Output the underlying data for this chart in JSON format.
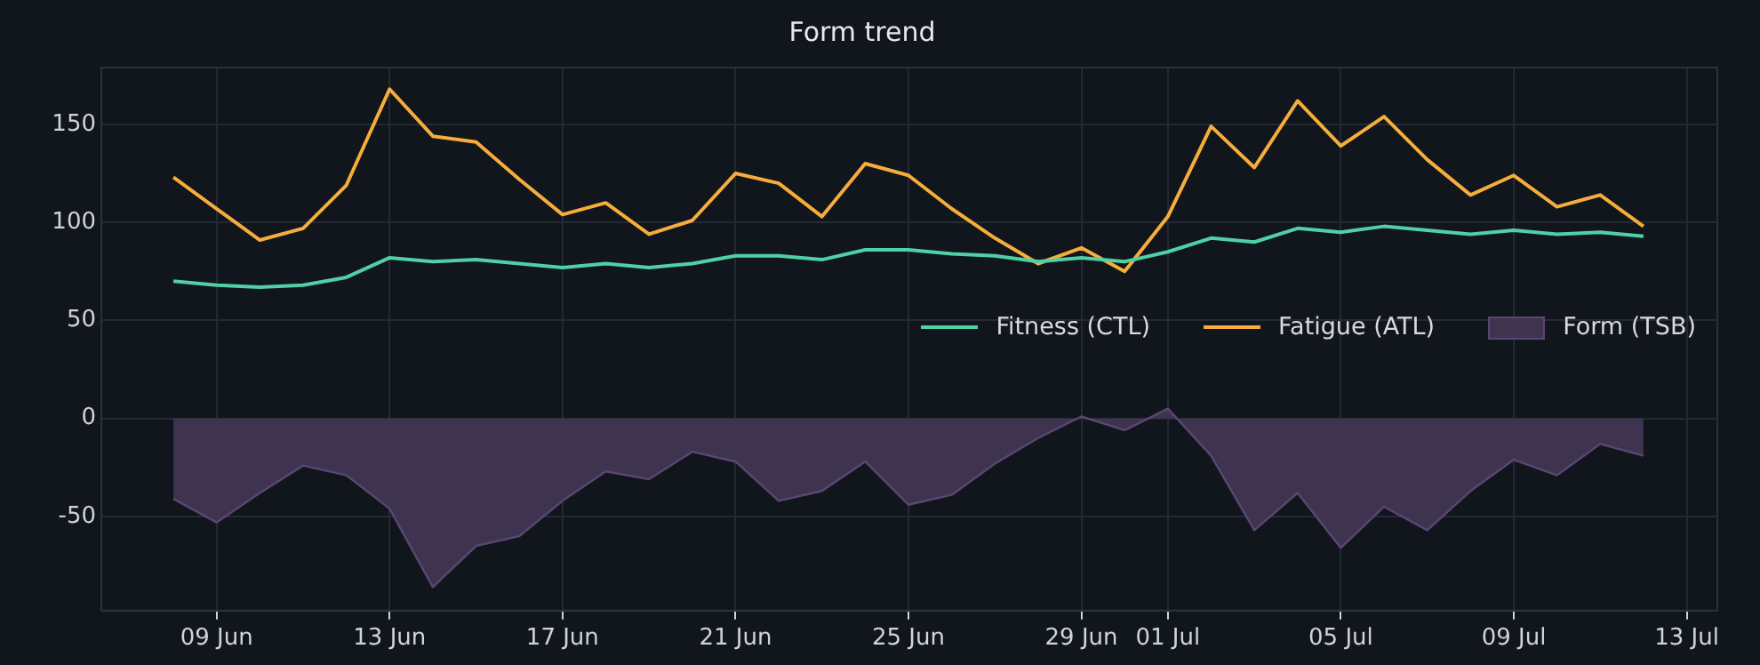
{
  "chart_data": {
    "type": "line",
    "title": "Form trend",
    "x": [
      "--06-08",
      "--06-09",
      "--06-10",
      "--06-11",
      "--06-12",
      "--06-13",
      "--06-14",
      "--06-15",
      "--06-16",
      "--06-17",
      "--06-18",
      "--06-19",
      "--06-20",
      "--06-21",
      "--06-22",
      "--06-23",
      "--06-24",
      "--06-25",
      "--06-26",
      "--06-27",
      "--06-28",
      "--06-29",
      "--06-30",
      "--07-01",
      "--07-02",
      "--07-03",
      "--07-04",
      "--07-05",
      "--07-06",
      "--07-07",
      "--07-08",
      "--07-09",
      "--07-10",
      "--07-11",
      "--07-12"
    ],
    "series": [
      {
        "name": "Fitness (CTL)",
        "type": "line",
        "color": "#4fd1a5",
        "values": [
          70,
          68,
          67,
          68,
          72,
          82,
          80,
          81,
          79,
          77,
          79,
          77,
          79,
          83,
          83,
          81,
          86,
          86,
          84,
          83,
          80,
          82,
          80,
          85,
          92,
          90,
          97,
          95,
          98,
          96,
          94,
          96,
          94,
          95,
          93
        ]
      },
      {
        "name": "Fatigue (ATL)",
        "type": "line",
        "color": "#f6ad3b",
        "values": [
          123,
          107,
          91,
          97,
          119,
          168,
          144,
          141,
          122,
          104,
          110,
          94,
          101,
          125,
          120,
          103,
          130,
          124,
          107,
          92,
          79,
          87,
          75,
          103,
          149,
          128,
          162,
          139,
          154,
          132,
          114,
          124,
          108,
          114,
          98
        ]
      },
      {
        "name": "Form (TSB)",
        "type": "area",
        "color": "#3f3450",
        "values": [
          -41,
          -53,
          -38,
          -24,
          -29,
          -46,
          -86,
          -65,
          -60,
          -42,
          -27,
          -31,
          -17,
          -22,
          -42,
          -37,
          -22,
          -44,
          -39,
          -23,
          -10,
          1,
          -6,
          5,
          -19,
          -57,
          -38,
          -66,
          -45,
          -57,
          -37,
          -21,
          -29,
          -13,
          -19
        ]
      }
    ],
    "xlim": [
      "--06-06T08:00",
      "--07-13T17:00"
    ],
    "xticks": [
      {
        "value": "--06-09",
        "label": "09 Jun"
      },
      {
        "value": "--06-13",
        "label": "13 Jun"
      },
      {
        "value": "--06-17",
        "label": "17 Jun"
      },
      {
        "value": "--06-21",
        "label": "21 Jun"
      },
      {
        "value": "--06-25",
        "label": "25 Jun"
      },
      {
        "value": "--06-29",
        "label": "29 Jun"
      },
      {
        "value": "--07-01",
        "label": "01 Jul"
      },
      {
        "value": "--07-05",
        "label": "05 Jul"
      },
      {
        "value": "--07-09",
        "label": "09 Jul"
      },
      {
        "value": "--07-13",
        "label": "13 Jul"
      }
    ],
    "ylim": [
      -98,
      179
    ],
    "yticks": [
      -50,
      0,
      50,
      100,
      150
    ],
    "grid": true,
    "legend": "right",
    "marker": "none",
    "line_style": "solid"
  }
}
